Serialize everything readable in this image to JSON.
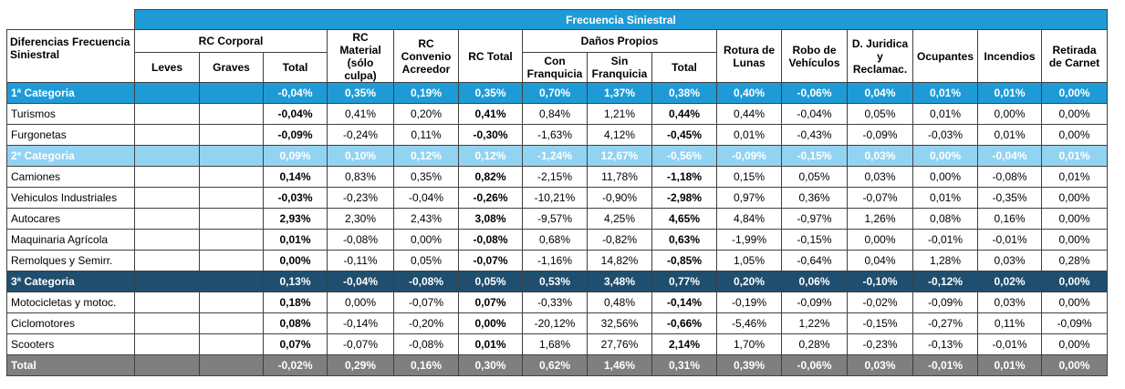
{
  "header": {
    "title": "Frecuencia Siniestral",
    "corner": "Diferencias Frecuencia Siniestral",
    "columns": [
      {
        "label": "RC Corporal",
        "sub": [
          "Leves",
          "Graves",
          "Total"
        ]
      },
      {
        "label": "RC Material (sólo culpa)"
      },
      {
        "label": "RC Convenio Acreedor"
      },
      {
        "label": "RC Total"
      },
      {
        "label": "Daños Propios",
        "sub": [
          "Con Franquicia",
          "Sin Franquicia",
          "Total"
        ]
      },
      {
        "label": "Rotura de Lunas"
      },
      {
        "label": "Robo de Vehículos"
      },
      {
        "label": "D. Juridica y Reclamac."
      },
      {
        "label": "Ocupantes"
      },
      {
        "label": "Incendios"
      },
      {
        "label": "Retirada de Carnet"
      }
    ]
  },
  "table": {
    "groups": [
      {
        "label": "1ª Categoria",
        "values": [
          "-0,04%",
          "0,35%",
          "0,19%",
          "0,35%",
          "0,70%",
          "1,37%",
          "0,38%",
          "0,40%",
          "-0,06%",
          "0,04%",
          "0,01%",
          "0,01%",
          "0,00%"
        ],
        "rows": [
          {
            "label": "Turismos",
            "values": [
              "-0,04%",
              "0,41%",
              "0,20%",
              "0,41%",
              "0,84%",
              "1,21%",
              "0,44%",
              "0,44%",
              "-0,04%",
              "0,05%",
              "0,01%",
              "0,00%",
              "0,00%"
            ]
          },
          {
            "label": "Furgonetas",
            "values": [
              "-0,09%",
              "-0,24%",
              "0,11%",
              "-0,30%",
              "-1,63%",
              "4,12%",
              "-0,45%",
              "0,01%",
              "-0,43%",
              "-0,09%",
              "-0,03%",
              "0,01%",
              "0,00%"
            ]
          }
        ]
      },
      {
        "label": "2ª Categoria",
        "values": [
          "0,09%",
          "0,10%",
          "0,12%",
          "0,12%",
          "-1,24%",
          "12,67%",
          "-0,56%",
          "-0,09%",
          "-0,15%",
          "0,03%",
          "0,00%",
          "-0,04%",
          "0,01%"
        ],
        "rows": [
          {
            "label": "Camiones",
            "values": [
              "0,14%",
              "0,83%",
              "0,35%",
              "0,82%",
              "-2,15%",
              "11,78%",
              "-1,18%",
              "0,15%",
              "0,05%",
              "0,03%",
              "0,00%",
              "-0,08%",
              "0,01%"
            ]
          },
          {
            "label": "Vehiculos Industriales",
            "values": [
              "-0,03%",
              "-0,23%",
              "-0,04%",
              "-0,26%",
              "-10,21%",
              "-0,90%",
              "-2,98%",
              "0,97%",
              "0,36%",
              "-0,07%",
              "0,01%",
              "-0,35%",
              "0,00%"
            ]
          },
          {
            "label": "Autocares",
            "values": [
              "2,93%",
              "2,30%",
              "2,43%",
              "3,08%",
              "-9,57%",
              "4,25%",
              "4,65%",
              "4,84%",
              "-0,97%",
              "1,26%",
              "0,08%",
              "0,16%",
              "0,00%"
            ]
          },
          {
            "label": "Maquinaria Agrícola",
            "values": [
              "0,01%",
              "-0,08%",
              "0,00%",
              "-0,08%",
              "0,68%",
              "-0,82%",
              "0,63%",
              "-1,99%",
              "-0,15%",
              "0,00%",
              "-0,01%",
              "-0,01%",
              "0,00%"
            ]
          },
          {
            "label": "Remolques y Semirr.",
            "values": [
              "0,00%",
              "-0,11%",
              "0,05%",
              "-0,07%",
              "-1,16%",
              "14,82%",
              "-0,85%",
              "1,05%",
              "-0,64%",
              "0,04%",
              "1,28%",
              "0,03%",
              "0,28%"
            ]
          }
        ]
      },
      {
        "label": "3ª Categoria",
        "values": [
          "0,13%",
          "-0,04%",
          "-0,08%",
          "0,05%",
          "0,53%",
          "3,48%",
          "0,77%",
          "0,20%",
          "0,06%",
          "-0,10%",
          "-0,12%",
          "0,02%",
          "0,00%"
        ],
        "rows": [
          {
            "label": "Motocicletas y motoc.",
            "values": [
              "0,18%",
              "0,00%",
              "-0,07%",
              "0,07%",
              "-0,33%",
              "0,48%",
              "-0,14%",
              "-0,19%",
              "-0,09%",
              "-0,02%",
              "-0,09%",
              "0,03%",
              "0,00%"
            ]
          },
          {
            "label": "Ciclomotores",
            "values": [
              "0,08%",
              "-0,14%",
              "-0,20%",
              "0,00%",
              "-20,12%",
              "32,56%",
              "-0,66%",
              "-5,46%",
              "1,22%",
              "-0,15%",
              "-0,27%",
              "0,11%",
              "-0,09%"
            ]
          },
          {
            "label": "Scooters",
            "values": [
              "0,07%",
              "-0,07%",
              "-0,08%",
              "0,01%",
              "1,68%",
              "27,76%",
              "2,14%",
              "1,70%",
              "0,28%",
              "-0,23%",
              "-0,13%",
              "-0,01%",
              "0,00%"
            ]
          }
        ]
      }
    ],
    "total": {
      "label": "Total",
      "values": [
        "-0,02%",
        "0,29%",
        "0,16%",
        "0,30%",
        "0,62%",
        "1,46%",
        "0,31%",
        "0,39%",
        "-0,06%",
        "0,03%",
        "-0,01%",
        "0,01%",
        "0,00%"
      ]
    }
  }
}
